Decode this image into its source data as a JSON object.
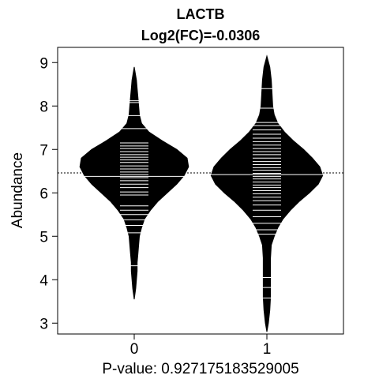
{
  "chart_data": {
    "type": "beanplot",
    "title": "LACTB",
    "subtitle": "Log2(FC)=-0.0306",
    "xlabel": "P-value: 0.927175183529005",
    "ylabel": "Abundance",
    "ylim": [
      2.75,
      9.35
    ],
    "yticks": [
      3,
      4,
      5,
      6,
      7,
      8,
      9
    ],
    "categories": [
      "0",
      "1"
    ],
    "overall_line": 6.46,
    "colors": {
      "bean": "#000000",
      "lines": "#ffffff",
      "background": "#ffffff"
    },
    "groups": [
      {
        "name": "0",
        "mean": 6.38,
        "range": [
          3.55,
          8.9
        ],
        "density": [
          [
            3.55,
            0.0
          ],
          [
            3.8,
            0.02
          ],
          [
            4.0,
            0.03
          ],
          [
            4.2,
            0.04
          ],
          [
            4.4,
            0.04
          ],
          [
            4.6,
            0.05
          ],
          [
            4.8,
            0.06
          ],
          [
            5.0,
            0.07
          ],
          [
            5.2,
            0.1
          ],
          [
            5.4,
            0.14
          ],
          [
            5.6,
            0.22
          ],
          [
            5.8,
            0.32
          ],
          [
            6.0,
            0.45
          ],
          [
            6.2,
            0.58
          ],
          [
            6.4,
            0.68
          ],
          [
            6.6,
            0.74
          ],
          [
            6.8,
            0.72
          ],
          [
            7.0,
            0.58
          ],
          [
            7.2,
            0.38
          ],
          [
            7.4,
            0.2
          ],
          [
            7.6,
            0.1
          ],
          [
            7.8,
            0.07
          ],
          [
            8.0,
            0.06
          ],
          [
            8.2,
            0.05
          ],
          [
            8.4,
            0.04
          ],
          [
            8.6,
            0.03
          ],
          [
            8.9,
            0.0
          ]
        ],
        "observations": [
          4.32,
          5.08,
          5.25,
          5.38,
          5.5,
          5.6,
          5.7,
          5.95,
          6.02,
          6.12,
          6.2,
          6.28,
          6.35,
          6.42,
          6.48,
          6.55,
          6.62,
          6.7,
          6.76,
          6.82,
          6.88,
          6.95,
          7.02,
          7.08,
          7.15,
          7.48,
          7.78,
          8.08,
          8.12
        ]
      },
      {
        "name": "1",
        "mean": 6.42,
        "range": [
          2.8,
          9.15
        ],
        "density": [
          [
            2.8,
            0.0
          ],
          [
            3.0,
            0.02
          ],
          [
            3.3,
            0.04
          ],
          [
            3.6,
            0.05
          ],
          [
            3.9,
            0.05
          ],
          [
            4.2,
            0.05
          ],
          [
            4.5,
            0.05
          ],
          [
            4.8,
            0.06
          ],
          [
            5.0,
            0.1
          ],
          [
            5.2,
            0.15
          ],
          [
            5.4,
            0.22
          ],
          [
            5.6,
            0.32
          ],
          [
            5.8,
            0.44
          ],
          [
            6.0,
            0.58
          ],
          [
            6.2,
            0.7
          ],
          [
            6.4,
            0.76
          ],
          [
            6.6,
            0.72
          ],
          [
            6.8,
            0.62
          ],
          [
            7.0,
            0.5
          ],
          [
            7.2,
            0.36
          ],
          [
            7.4,
            0.24
          ],
          [
            7.6,
            0.15
          ],
          [
            7.8,
            0.1
          ],
          [
            8.0,
            0.08
          ],
          [
            8.3,
            0.07
          ],
          [
            8.6,
            0.06
          ],
          [
            8.9,
            0.04
          ],
          [
            9.15,
            0.0
          ]
        ],
        "observations": [
          3.58,
          3.82,
          4.05,
          5.05,
          5.15,
          5.3,
          5.45,
          5.6,
          5.72,
          5.82,
          5.9,
          5.98,
          6.05,
          6.12,
          6.18,
          6.25,
          6.32,
          6.38,
          6.45,
          6.52,
          6.58,
          6.65,
          6.72,
          6.8,
          6.88,
          6.95,
          7.02,
          7.1,
          7.18,
          7.26,
          7.35,
          7.45,
          7.55,
          7.62,
          7.95,
          8.4
        ]
      }
    ]
  }
}
